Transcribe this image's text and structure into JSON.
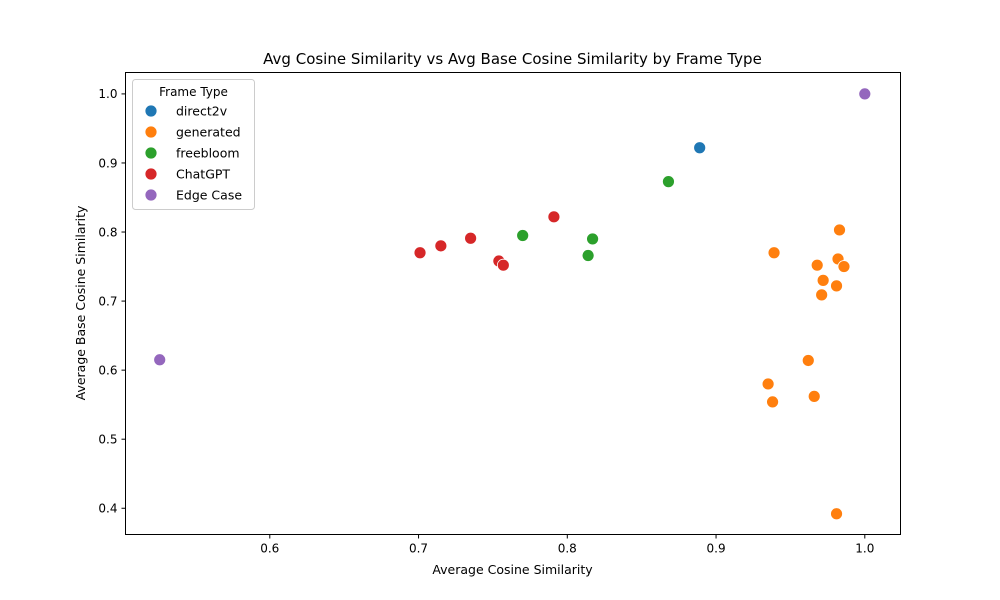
{
  "chart_data": {
    "type": "scatter",
    "title": "Avg Cosine Similarity vs Avg Base Cosine Similarity by Frame Type",
    "xlabel": "Average Cosine Similarity",
    "ylabel": "Average Base Cosine Similarity",
    "xlim": [
      0.503,
      1.024
    ],
    "ylim": [
      0.362,
      1.031
    ],
    "xticks": [
      0.6,
      0.7,
      0.8,
      0.9,
      1.0
    ],
    "xtick_labels": [
      "0.6",
      "0.7",
      "0.8",
      "0.9",
      "1.0"
    ],
    "yticks": [
      0.4,
      0.5,
      0.6,
      0.7,
      0.8,
      0.9,
      1.0
    ],
    "ytick_labels": [
      "0.4",
      "0.5",
      "0.6",
      "0.7",
      "0.8",
      "0.9",
      "1.0"
    ],
    "grid": false,
    "legend": {
      "title": "Frame Type",
      "placement": "upper left"
    },
    "series": [
      {
        "name": "direct2v",
        "color": "#1f77b4",
        "points": [
          [
            0.889,
            0.922
          ]
        ]
      },
      {
        "name": "generated",
        "color": "#ff7f0e",
        "points": [
          [
            0.939,
            0.77
          ],
          [
            0.983,
            0.803
          ],
          [
            0.982,
            0.761
          ],
          [
            0.968,
            0.752
          ],
          [
            0.986,
            0.75
          ],
          [
            0.972,
            0.73
          ],
          [
            0.981,
            0.722
          ],
          [
            0.971,
            0.709
          ],
          [
            0.962,
            0.614
          ],
          [
            0.935,
            0.58
          ],
          [
            0.938,
            0.554
          ],
          [
            0.966,
            0.562
          ],
          [
            0.981,
            0.392
          ]
        ]
      },
      {
        "name": "freebloom",
        "color": "#2ca02c",
        "points": [
          [
            0.868,
            0.873
          ],
          [
            0.77,
            0.795
          ],
          [
            0.817,
            0.79
          ],
          [
            0.814,
            0.766
          ]
        ]
      },
      {
        "name": "ChatGPT",
        "color": "#d62728",
        "points": [
          [
            0.791,
            0.822
          ],
          [
            0.735,
            0.791
          ],
          [
            0.715,
            0.78
          ],
          [
            0.701,
            0.77
          ],
          [
            0.754,
            0.758
          ],
          [
            0.757,
            0.752
          ]
        ]
      },
      {
        "name": "Edge Case",
        "color": "#9467bd",
        "points": [
          [
            1.0,
            1.0
          ],
          [
            0.526,
            0.615
          ]
        ]
      }
    ]
  }
}
